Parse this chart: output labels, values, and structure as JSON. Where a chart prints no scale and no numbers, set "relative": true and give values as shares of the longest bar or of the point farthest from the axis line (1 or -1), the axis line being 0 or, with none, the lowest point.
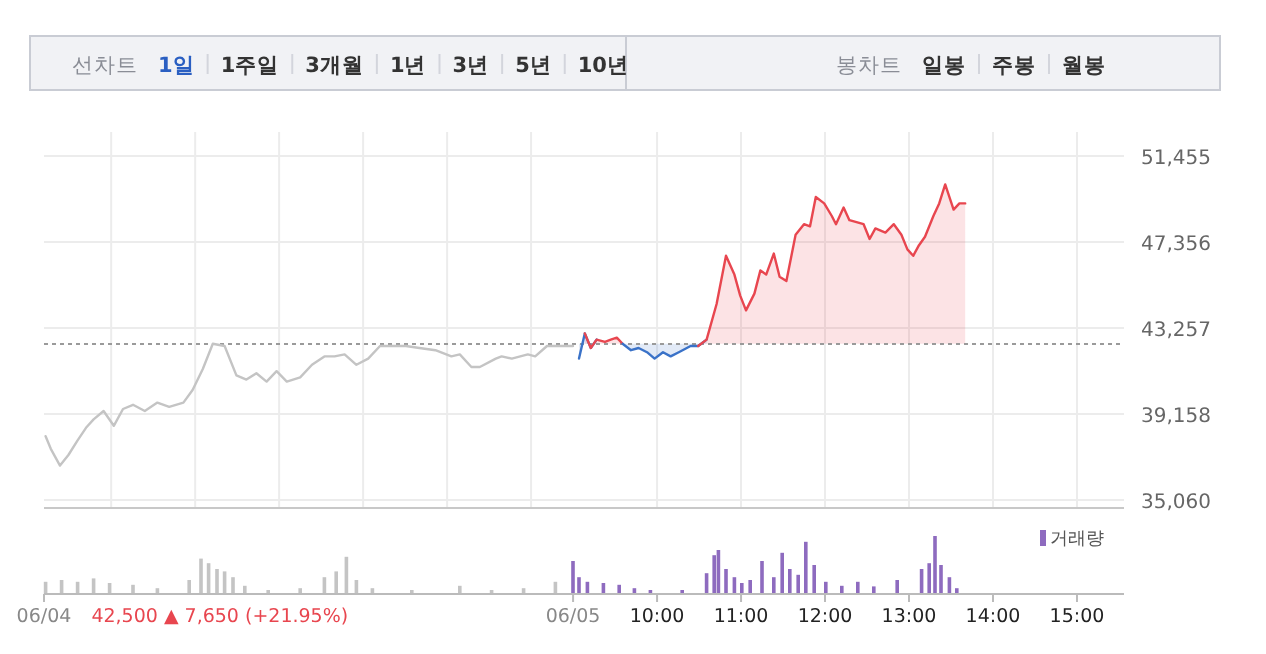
{
  "chart_data": [
    {
      "type": "line",
      "annotations": [
        "선차트",
        "1일",
        "1주일",
        "3개월",
        "1년",
        "3년",
        "5년",
        "10년",
        "봉차트",
        "일봉",
        "주봉",
        "월봉"
      ],
      "xlim": [
        2.7,
        15.56
      ],
      "xticks": [
        {
          "value": 3.5,
          "label": null
        },
        {
          "value": 4.5,
          "label": null
        },
        {
          "value": 5.5,
          "label": null
        },
        {
          "value": 6.5,
          "label": null
        },
        {
          "value": 7.5,
          "label": null
        },
        {
          "value": 8.5,
          "label": null
        },
        {
          "value": 10,
          "label": null
        },
        {
          "value": 11,
          "label": null
        },
        {
          "value": 12,
          "label": null
        },
        {
          "value": 13,
          "label": null
        },
        {
          "value": 14,
          "label": null
        },
        {
          "value": 15,
          "label": null
        }
      ],
      "ylim": [
        35060,
        51455
      ],
      "yticks": [
        {
          "value": 35060,
          "label": "35,060"
        },
        {
          "value": 39158,
          "label": "39,158"
        },
        {
          "value": 43257,
          "label": "43,257"
        },
        {
          "value": 47356,
          "label": "47,356"
        },
        {
          "value": 51455,
          "label": "51,455"
        }
      ],
      "grid": true,
      "tick_labels": "y",
      "ref_lines": [
        {
          "axis": "y",
          "value": 42500,
          "color": "#9a9a9a",
          "line_style": "dotted"
        }
      ],
      "series": [
        {
          "type": "line",
          "color": "#c4c4c4",
          "x": [
            2.72,
            2.78,
            2.89,
            2.99,
            3.1,
            3.2,
            3.29,
            3.41,
            3.53,
            3.64,
            3.76,
            3.9,
            4.05,
            4.19,
            4.36,
            4.47,
            4.59,
            4.71,
            4.85,
            4.99,
            5.11,
            5.23,
            5.35,
            5.47,
            5.59,
            5.75,
            5.89,
            6.04,
            6.16,
            6.28,
            6.42,
            6.56,
            6.7,
            6.84,
            7.01,
            7.17,
            7.36,
            7.55,
            7.65,
            7.79,
            7.89,
            8.08,
            8.15,
            8.27,
            8.46,
            8.55,
            8.69,
            8.86,
            9.0
          ],
          "values": [
            38100,
            37500,
            36700,
            37200,
            37900,
            38500,
            38900,
            39300,
            38600,
            39400,
            39600,
            39300,
            39700,
            39500,
            39700,
            40300,
            41300,
            42500,
            42400,
            41000,
            40800,
            41100,
            40700,
            41200,
            40700,
            40900,
            41500,
            41900,
            41900,
            42000,
            41500,
            41800,
            42400,
            42400,
            42400,
            42300,
            42200,
            41900,
            42000,
            41400,
            41400,
            41800,
            41900,
            41800,
            42000,
            41900,
            42400,
            42400,
            42400
          ]
        },
        {
          "type": "area",
          "color": "#3a72c8",
          "x": [
            9.07,
            9.14,
            9.21,
            9.28
          ],
          "values": [
            41800,
            43000,
            42300,
            42700
          ]
        },
        {
          "type": "area",
          "color": "#e8464f",
          "x": [
            9.14,
            9.21,
            9.28,
            9.38,
            9.45,
            9.52,
            9.59
          ],
          "values": [
            43000,
            42300,
            42700,
            42600,
            42700,
            42800,
            42500
          ]
        },
        {
          "type": "area",
          "color": "#3a72c8",
          "x": [
            9.59,
            9.69,
            9.78,
            9.88,
            9.97,
            10.07,
            10.16,
            10.26,
            10.4,
            10.49,
            10.59
          ],
          "values": [
            42500,
            42200,
            42300,
            42100,
            41800,
            42100,
            41900,
            42100,
            42400,
            42400,
            42700
          ]
        },
        {
          "type": "area",
          "color": "#e8464f",
          "x": [
            10.49,
            10.59,
            10.71,
            10.82,
            10.92,
            10.99,
            11.06,
            11.16,
            11.23,
            11.3,
            11.39,
            11.46,
            11.54,
            11.65,
            11.75,
            11.82,
            11.89,
            11.99,
            12.08,
            12.13,
            12.22,
            12.29,
            12.46,
            12.53,
            12.6,
            12.72,
            12.82,
            12.91,
            12.98,
            13.05,
            13.12,
            13.19,
            13.29,
            13.36,
            13.43,
            13.53,
            13.6,
            13.67
          ],
          "values": [
            42400,
            42700,
            44400,
            46700,
            45800,
            44800,
            44100,
            44900,
            46000,
            45800,
            46800,
            45700,
            45500,
            47700,
            48200,
            48100,
            49500,
            49200,
            48600,
            48200,
            49000,
            48400,
            48200,
            47500,
            48000,
            47800,
            48200,
            47700,
            47000,
            46700,
            47200,
            47600,
            48600,
            49200,
            50100,
            48900,
            49200,
            49200
          ]
        }
      ]
    },
    {
      "type": "bar",
      "relative": true,
      "legend": "top right",
      "annotations": [
        "06/04",
        "42,500 ▲ 7,650 (+21.95%)",
        "06/05"
      ],
      "xlim": [
        2.7,
        15.56
      ],
      "xticks": [
        {
          "value": 2.7,
          "label": null
        },
        {
          "value": 9,
          "label": null
        },
        {
          "value": 10,
          "label": "10:00"
        },
        {
          "value": 11,
          "label": "11:00"
        },
        {
          "value": 12,
          "label": "12:00"
        },
        {
          "value": 13,
          "label": "13:00"
        },
        {
          "value": 14,
          "label": "14:00"
        },
        {
          "value": 15,
          "label": "15:00"
        }
      ],
      "tick_labels": "x",
      "series": [
        {
          "color": "#c4c4c4",
          "x": [
            2.72,
            2.91,
            3.1,
            3.29,
            3.48,
            3.76,
            4.05,
            4.43,
            4.57,
            4.66,
            4.76,
            4.85,
            4.95,
            5.09,
            5.37,
            5.75,
            6.04,
            6.18,
            6.3,
            6.42,
            6.61,
            7.08,
            7.65,
            8.03,
            8.41,
            8.79
          ],
          "values": [
            0.21,
            0.24,
            0.21,
            0.27,
            0.19,
            0.16,
            0.1,
            0.24,
            0.61,
            0.53,
            0.43,
            0.39,
            0.29,
            0.14,
            0.07,
            0.1,
            0.29,
            0.39,
            0.64,
            0.24,
            0.1,
            0.07,
            0.14,
            0.07,
            0.1,
            0.21
          ]
        },
        {
          "name": "거래량",
          "color": "#8e6bbf",
          "x": [
            9.0,
            9.07,
            9.17,
            9.36,
            9.55,
            9.73,
            9.92,
            10.3,
            10.59,
            10.68,
            10.73,
            10.82,
            10.92,
            11.01,
            11.11,
            11.25,
            11.39,
            11.49,
            11.58,
            11.68,
            11.77,
            11.87,
            12.01,
            12.2,
            12.39,
            12.58,
            12.86,
            13.15,
            13.24,
            13.31,
            13.38,
            13.48,
            13.57
          ],
          "values": [
            0.57,
            0.29,
            0.21,
            0.19,
            0.16,
            0.1,
            0.07,
            0.07,
            0.36,
            0.67,
            0.76,
            0.43,
            0.29,
            0.19,
            0.24,
            0.57,
            0.29,
            0.71,
            0.43,
            0.33,
            0.9,
            0.5,
            0.21,
            0.14,
            0.21,
            0.13,
            0.24,
            0.43,
            0.53,
            1,
            0.5,
            0.29,
            0.1
          ]
        }
      ]
    }
  ]
}
